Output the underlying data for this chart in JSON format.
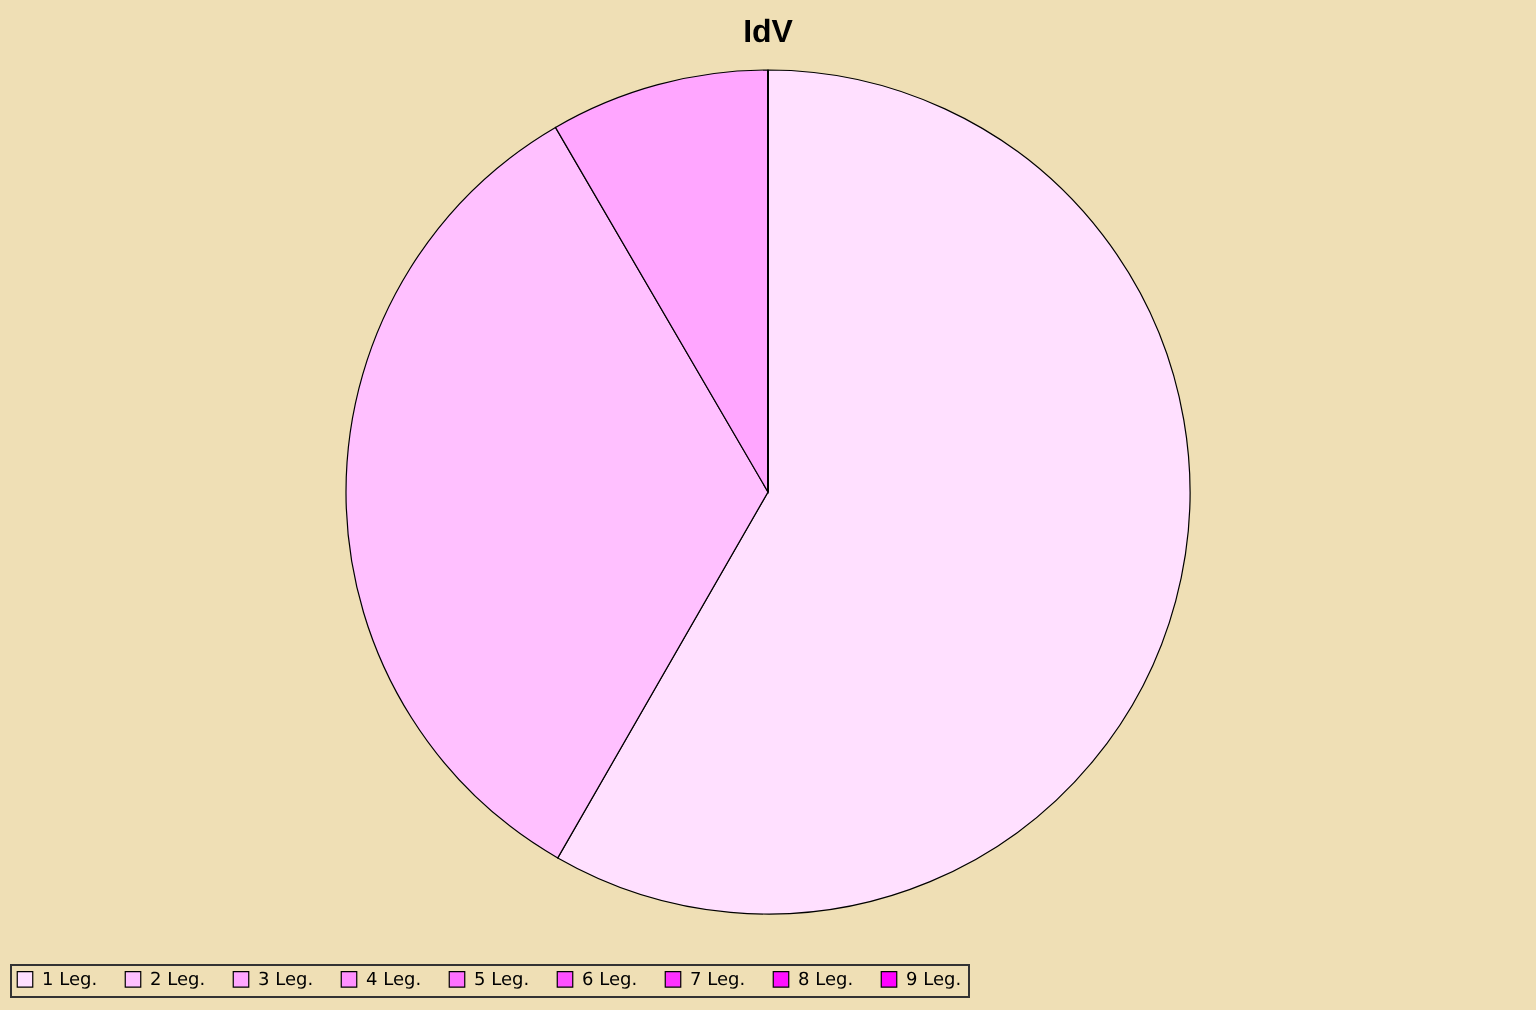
{
  "chart_data": {
    "type": "pie",
    "title": "IdV",
    "categories": [
      "1 Leg.",
      "2 Leg.",
      "3 Leg.",
      "4 Leg.",
      "5 Leg.",
      "6 Leg.",
      "7 Leg.",
      "8 Leg.",
      "9 Leg."
    ],
    "values": [
      58.3,
      33.3,
      8.4,
      0,
      0,
      0,
      0,
      0,
      0
    ],
    "colors": [
      "#ffe0ff",
      "#ffc0ff",
      "#ffa6ff",
      "#ff90ff",
      "#ff70ff",
      "#ff50ff",
      "#ff30ff",
      "#ff10ff",
      "#ff00ff"
    ],
    "legend": "bottom"
  }
}
